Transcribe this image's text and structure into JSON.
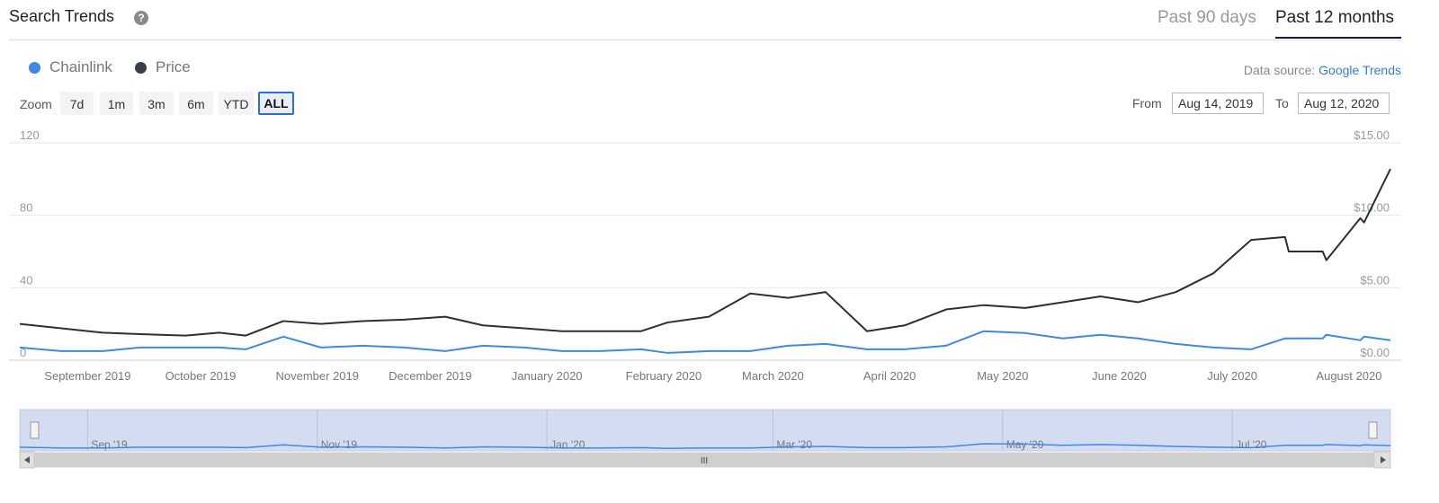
{
  "header": {
    "title": "Search Trends",
    "help_glyph": "?",
    "tabs": [
      {
        "label": "Past 90 days",
        "active": false
      },
      {
        "label": "Past 12 months",
        "active": true
      }
    ]
  },
  "legend": {
    "items": [
      {
        "label": "Chainlink",
        "color": "#3f88e6"
      },
      {
        "label": "Price",
        "color": "#3a3f47"
      }
    ]
  },
  "source": {
    "prefix": "Data source: ",
    "link": "Google Trends"
  },
  "zoom": {
    "label": "Zoom",
    "buttons": [
      "7d",
      "1m",
      "3m",
      "6m",
      "YTD",
      "ALL"
    ],
    "selected": "ALL"
  },
  "range": {
    "from_label": "From",
    "from_value": "Aug 14, 2019",
    "to_label": "To",
    "to_value": "Aug 12, 2020"
  },
  "colors": {
    "search": "#3f88e6",
    "price": "#2b2f36",
    "navigator_fill": "#d3dcf0",
    "grid": "#e6e6e6"
  },
  "chart_data": {
    "type": "line",
    "x_range": [
      "2019-08-14",
      "2020-08-12"
    ],
    "x_tick_labels": [
      "September 2019",
      "October 2019",
      "November 2019",
      "December 2019",
      "January 2020",
      "February 2020",
      "March 2020",
      "April 2020",
      "May 2020",
      "June 2020",
      "July 2020",
      "August 2020"
    ],
    "y_left": {
      "ticks": [
        "0",
        "40",
        "80",
        "120"
      ],
      "range": [
        0,
        120
      ]
    },
    "y_right": {
      "ticks": [
        "$0.00",
        "$5.00",
        "$10.00",
        "$15.00"
      ],
      "range": [
        0,
        15
      ]
    },
    "series": [
      {
        "name": "Chainlink",
        "axis": "left",
        "points": [
          [
            "2019-08-14",
            7
          ],
          [
            "2019-08-25",
            5
          ],
          [
            "2019-09-05",
            5
          ],
          [
            "2019-09-15",
            7
          ],
          [
            "2019-09-27",
            7
          ],
          [
            "2019-10-06",
            7
          ],
          [
            "2019-10-13",
            6
          ],
          [
            "2019-10-23",
            13
          ],
          [
            "2019-11-02",
            7
          ],
          [
            "2019-11-13",
            8
          ],
          [
            "2019-11-24",
            7
          ],
          [
            "2019-12-05",
            5
          ],
          [
            "2019-12-15",
            8
          ],
          [
            "2019-12-26",
            7
          ],
          [
            "2020-01-05",
            5
          ],
          [
            "2020-01-15",
            5
          ],
          [
            "2020-01-26",
            6
          ],
          [
            "2020-02-02",
            4
          ],
          [
            "2020-02-13",
            5
          ],
          [
            "2020-02-24",
            5
          ],
          [
            "2020-03-05",
            8
          ],
          [
            "2020-03-15",
            9
          ],
          [
            "2020-03-26",
            6
          ],
          [
            "2020-04-05",
            6
          ],
          [
            "2020-04-16",
            8
          ],
          [
            "2020-04-26",
            16
          ],
          [
            "2020-05-07",
            15
          ],
          [
            "2020-05-17",
            12
          ],
          [
            "2020-05-27",
            14
          ],
          [
            "2020-06-06",
            12
          ],
          [
            "2020-06-16",
            9
          ],
          [
            "2020-06-26",
            7
          ],
          [
            "2020-07-06",
            6
          ],
          [
            "2020-07-16",
            12
          ],
          [
            "2020-07-26",
            14
          ],
          [
            "2020-08-05",
            13
          ],
          [
            "2020-07-15",
            12
          ],
          [
            "2020-07-25",
            12
          ],
          [
            "2020-08-04",
            11
          ],
          [
            "2020-08-12",
            11
          ]
        ]
      },
      {
        "name": "Price",
        "axis": "right",
        "points": [
          [
            "2019-08-14",
            2.5
          ],
          [
            "2019-08-25",
            2.2
          ],
          [
            "2019-09-05",
            1.9
          ],
          [
            "2019-09-15",
            1.8
          ],
          [
            "2019-09-27",
            1.7
          ],
          [
            "2019-10-06",
            1.9
          ],
          [
            "2019-10-13",
            1.7
          ],
          [
            "2019-10-23",
            2.7
          ],
          [
            "2019-11-02",
            2.5
          ],
          [
            "2019-11-13",
            2.7
          ],
          [
            "2019-11-24",
            2.8
          ],
          [
            "2019-12-05",
            3.0
          ],
          [
            "2019-12-15",
            2.4
          ],
          [
            "2019-12-26",
            2.2
          ],
          [
            "2020-01-05",
            2.0
          ],
          [
            "2020-01-15",
            2.0
          ],
          [
            "2020-01-26",
            2.0
          ],
          [
            "2020-02-02",
            2.6
          ],
          [
            "2020-02-13",
            3.0
          ],
          [
            "2020-02-24",
            4.6
          ],
          [
            "2020-03-05",
            4.3
          ],
          [
            "2020-03-15",
            4.7
          ],
          [
            "2020-03-26",
            2.0
          ],
          [
            "2020-04-05",
            2.4
          ],
          [
            "2020-04-16",
            3.5
          ],
          [
            "2020-04-26",
            3.8
          ],
          [
            "2020-05-07",
            3.6
          ],
          [
            "2020-05-17",
            4.0
          ],
          [
            "2020-05-27",
            4.4
          ],
          [
            "2020-06-06",
            4.0
          ],
          [
            "2020-06-16",
            4.7
          ],
          [
            "2020-06-26",
            6.0
          ],
          [
            "2020-07-06",
            8.3
          ],
          [
            "2020-07-16",
            7.5
          ],
          [
            "2020-07-26",
            6.9
          ],
          [
            "2020-08-05",
            9.5
          ],
          [
            "2020-07-15",
            8.5
          ],
          [
            "2020-07-25",
            7.5
          ],
          [
            "2020-08-04",
            9.8
          ],
          [
            "2020-08-12",
            13.2
          ]
        ]
      }
    ],
    "navigator_tick_labels": [
      "Sep '19",
      "Nov '19",
      "Jan '20",
      "Mar '20",
      "May '20",
      "Jul '20"
    ],
    "navigator_scroll_glyph": "III"
  }
}
